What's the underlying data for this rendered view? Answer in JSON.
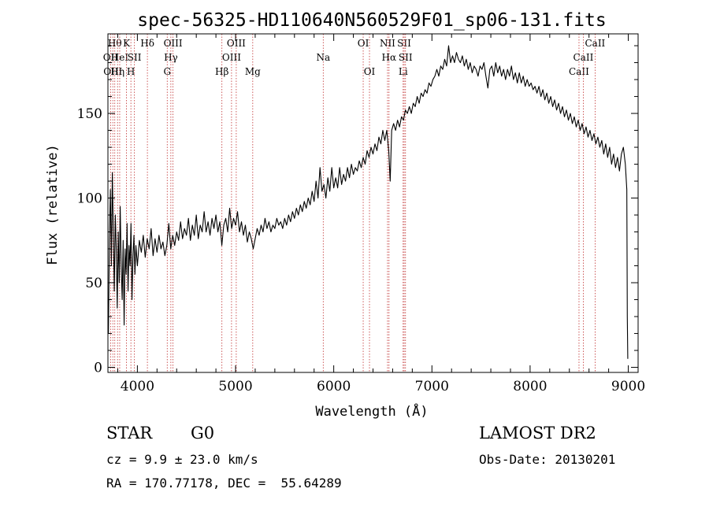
{
  "chart_data": {
    "type": "line",
    "title": "spec-56325-HD110640N560529F01_sp06-131.fits",
    "xlabel": "Wavelength (Å)",
    "ylabel": "Flux (relative)",
    "xlim": [
      3700,
      9100
    ],
    "ylim": [
      -3,
      197
    ],
    "x_ticks": [
      4000,
      5000,
      6000,
      7000,
      8000,
      9000
    ],
    "y_ticks": [
      0,
      50,
      100,
      150
    ],
    "grid": false,
    "series": [
      {
        "color": "#000000",
        "points": [
          [
            3705,
            20
          ],
          [
            3715,
            75
          ],
          [
            3725,
            105
          ],
          [
            3735,
            60
          ],
          [
            3745,
            115
          ],
          [
            3755,
            80
          ],
          [
            3765,
            45
          ],
          [
            3775,
            90
          ],
          [
            3785,
            70
          ],
          [
            3795,
            35
          ],
          [
            3805,
            80
          ],
          [
            3815,
            50
          ],
          [
            3825,
            95
          ],
          [
            3835,
            60
          ],
          [
            3845,
            40
          ],
          [
            3855,
            75
          ],
          [
            3865,
            25
          ],
          [
            3875,
            70
          ],
          [
            3885,
            55
          ],
          [
            3895,
            85
          ],
          [
            3905,
            45
          ],
          [
            3915,
            72
          ],
          [
            3925,
            60
          ],
          [
            3935,
            85
          ],
          [
            3945,
            40
          ],
          [
            3955,
            65
          ],
          [
            3965,
            78
          ],
          [
            3975,
            55
          ],
          [
            3985,
            72
          ],
          [
            4000,
            60
          ],
          [
            4020,
            75
          ],
          [
            4040,
            68
          ],
          [
            4060,
            78
          ],
          [
            4080,
            65
          ],
          [
            4100,
            76
          ],
          [
            4120,
            70
          ],
          [
            4140,
            82
          ],
          [
            4160,
            66
          ],
          [
            4180,
            76
          ],
          [
            4200,
            68
          ],
          [
            4220,
            78
          ],
          [
            4240,
            70
          ],
          [
            4260,
            74
          ],
          [
            4280,
            66
          ],
          [
            4300,
            72
          ],
          [
            4320,
            85
          ],
          [
            4340,
            70
          ],
          [
            4360,
            78
          ],
          [
            4380,
            72
          ],
          [
            4400,
            80
          ],
          [
            4420,
            75
          ],
          [
            4440,
            86
          ],
          [
            4460,
            76
          ],
          [
            4480,
            82
          ],
          [
            4500,
            78
          ],
          [
            4520,
            88
          ],
          [
            4540,
            75
          ],
          [
            4560,
            84
          ],
          [
            4580,
            78
          ],
          [
            4600,
            90
          ],
          [
            4620,
            76
          ],
          [
            4640,
            84
          ],
          [
            4660,
            80
          ],
          [
            4680,
            92
          ],
          [
            4700,
            80
          ],
          [
            4720,
            86
          ],
          [
            4740,
            78
          ],
          [
            4760,
            88
          ],
          [
            4780,
            82
          ],
          [
            4800,
            90
          ],
          [
            4820,
            80
          ],
          [
            4840,
            86
          ],
          [
            4860,
            72
          ],
          [
            4880,
            84
          ],
          [
            4900,
            88
          ],
          [
            4920,
            80
          ],
          [
            4940,
            94
          ],
          [
            4960,
            82
          ],
          [
            4980,
            88
          ],
          [
            5000,
            84
          ],
          [
            5020,
            92
          ],
          [
            5040,
            80
          ],
          [
            5060,
            86
          ],
          [
            5080,
            78
          ],
          [
            5100,
            84
          ],
          [
            5120,
            74
          ],
          [
            5140,
            80
          ],
          [
            5160,
            76
          ],
          [
            5180,
            70
          ],
          [
            5200,
            76
          ],
          [
            5220,
            82
          ],
          [
            5240,
            78
          ],
          [
            5260,
            84
          ],
          [
            5280,
            80
          ],
          [
            5300,
            88
          ],
          [
            5320,
            82
          ],
          [
            5340,
            86
          ],
          [
            5360,
            80
          ],
          [
            5380,
            84
          ],
          [
            5400,
            82
          ],
          [
            5420,
            88
          ],
          [
            5440,
            84
          ],
          [
            5460,
            86
          ],
          [
            5480,
            82
          ],
          [
            5500,
            88
          ],
          [
            5520,
            84
          ],
          [
            5540,
            90
          ],
          [
            5560,
            86
          ],
          [
            5580,
            92
          ],
          [
            5600,
            88
          ],
          [
            5620,
            94
          ],
          [
            5640,
            90
          ],
          [
            5660,
            96
          ],
          [
            5680,
            92
          ],
          [
            5700,
            98
          ],
          [
            5720,
            94
          ],
          [
            5740,
            100
          ],
          [
            5760,
            96
          ],
          [
            5780,
            104
          ],
          [
            5800,
            98
          ],
          [
            5820,
            110
          ],
          [
            5840,
            100
          ],
          [
            5860,
            118
          ],
          [
            5880,
            104
          ],
          [
            5900,
            108
          ],
          [
            5920,
            100
          ],
          [
            5940,
            112
          ],
          [
            5960,
            104
          ],
          [
            5980,
            118
          ],
          [
            6000,
            106
          ],
          [
            6020,
            112
          ],
          [
            6040,
            106
          ],
          [
            6060,
            118
          ],
          [
            6080,
            108
          ],
          [
            6100,
            114
          ],
          [
            6120,
            110
          ],
          [
            6140,
            118
          ],
          [
            6160,
            112
          ],
          [
            6180,
            120
          ],
          [
            6200,
            114
          ],
          [
            6220,
            118
          ],
          [
            6240,
            116
          ],
          [
            6260,
            122
          ],
          [
            6280,
            118
          ],
          [
            6300,
            124
          ],
          [
            6320,
            120
          ],
          [
            6340,
            128
          ],
          [
            6360,
            124
          ],
          [
            6380,
            130
          ],
          [
            6400,
            126
          ],
          [
            6420,
            132
          ],
          [
            6440,
            128
          ],
          [
            6460,
            136
          ],
          [
            6480,
            132
          ],
          [
            6500,
            140
          ],
          [
            6520,
            134
          ],
          [
            6540,
            140
          ],
          [
            6560,
            128
          ],
          [
            6575,
            110
          ],
          [
            6590,
            140
          ],
          [
            6610,
            144
          ],
          [
            6630,
            140
          ],
          [
            6650,
            146
          ],
          [
            6670,
            142
          ],
          [
            6690,
            148
          ],
          [
            6710,
            146
          ],
          [
            6730,
            152
          ],
          [
            6750,
            150
          ],
          [
            6770,
            154
          ],
          [
            6790,
            150
          ],
          [
            6810,
            156
          ],
          [
            6830,
            154
          ],
          [
            6850,
            160
          ],
          [
            6870,
            156
          ],
          [
            6890,
            162
          ],
          [
            6910,
            160
          ],
          [
            6930,
            164
          ],
          [
            6950,
            162
          ],
          [
            6970,
            168
          ],
          [
            6990,
            166
          ],
          [
            7010,
            170
          ],
          [
            7030,
            172
          ],
          [
            7050,
            176
          ],
          [
            7070,
            172
          ],
          [
            7090,
            178
          ],
          [
            7110,
            176
          ],
          [
            7130,
            182
          ],
          [
            7150,
            178
          ],
          [
            7170,
            190
          ],
          [
            7190,
            180
          ],
          [
            7210,
            184
          ],
          [
            7230,
            180
          ],
          [
            7250,
            186
          ],
          [
            7270,
            182
          ],
          [
            7290,
            180
          ],
          [
            7310,
            184
          ],
          [
            7330,
            178
          ],
          [
            7350,
            182
          ],
          [
            7370,
            176
          ],
          [
            7390,
            180
          ],
          [
            7410,
            174
          ],
          [
            7430,
            178
          ],
          [
            7450,
            176
          ],
          [
            7470,
            172
          ],
          [
            7490,
            178
          ],
          [
            7510,
            176
          ],
          [
            7530,
            180
          ],
          [
            7550,
            172
          ],
          [
            7570,
            165
          ],
          [
            7590,
            176
          ],
          [
            7610,
            178
          ],
          [
            7630,
            172
          ],
          [
            7650,
            180
          ],
          [
            7670,
            174
          ],
          [
            7690,
            178
          ],
          [
            7710,
            172
          ],
          [
            7730,
            176
          ],
          [
            7750,
            170
          ],
          [
            7770,
            176
          ],
          [
            7790,
            172
          ],
          [
            7810,
            178
          ],
          [
            7830,
            170
          ],
          [
            7850,
            174
          ],
          [
            7870,
            168
          ],
          [
            7890,
            174
          ],
          [
            7910,
            168
          ],
          [
            7930,
            172
          ],
          [
            7950,
            166
          ],
          [
            7970,
            170
          ],
          [
            7990,
            166
          ],
          [
            8010,
            168
          ],
          [
            8030,
            164
          ],
          [
            8050,
            166
          ],
          [
            8070,
            162
          ],
          [
            8090,
            166
          ],
          [
            8110,
            160
          ],
          [
            8130,
            164
          ],
          [
            8150,
            158
          ],
          [
            8170,
            162
          ],
          [
            8190,
            156
          ],
          [
            8210,
            160
          ],
          [
            8230,
            154
          ],
          [
            8250,
            158
          ],
          [
            8270,
            152
          ],
          [
            8290,
            156
          ],
          [
            8310,
            150
          ],
          [
            8330,
            154
          ],
          [
            8350,
            148
          ],
          [
            8370,
            152
          ],
          [
            8390,
            146
          ],
          [
            8410,
            150
          ],
          [
            8430,
            144
          ],
          [
            8450,
            148
          ],
          [
            8470,
            142
          ],
          [
            8490,
            146
          ],
          [
            8510,
            140
          ],
          [
            8530,
            144
          ],
          [
            8550,
            138
          ],
          [
            8570,
            142
          ],
          [
            8590,
            136
          ],
          [
            8610,
            140
          ],
          [
            8630,
            134
          ],
          [
            8650,
            138
          ],
          [
            8670,
            132
          ],
          [
            8690,
            136
          ],
          [
            8710,
            130
          ],
          [
            8730,
            134
          ],
          [
            8750,
            126
          ],
          [
            8770,
            132
          ],
          [
            8790,
            124
          ],
          [
            8810,
            130
          ],
          [
            8830,
            120
          ],
          [
            8850,
            126
          ],
          [
            8870,
            118
          ],
          [
            8890,
            124
          ],
          [
            8910,
            116
          ],
          [
            8930,
            126
          ],
          [
            8950,
            130
          ],
          [
            8970,
            120
          ],
          [
            8985,
            105
          ],
          [
            8990,
            30
          ],
          [
            8995,
            5
          ]
        ]
      }
    ],
    "line_markers": [
      {
        "x": 3727,
        "label": "OII",
        "row": 2
      },
      {
        "x": 3750,
        "label": "OIII",
        "row": 3
      },
      {
        "x": 3770,
        "label": "Hθ",
        "row": 1
      },
      {
        "x": 3798,
        "label": "Hη",
        "row": 3
      },
      {
        "x": 3820,
        "label": "HeI",
        "row": 2
      },
      {
        "x": 3889,
        "label": "K",
        "row": 1
      },
      {
        "x": 3934,
        "label": "H",
        "row": 3
      },
      {
        "x": 3970,
        "label": "SII",
        "row": 2
      },
      {
        "x": 4102,
        "label": "Hδ",
        "row": 1
      },
      {
        "x": 4304,
        "label": "G",
        "row": 3
      },
      {
        "x": 4341,
        "label": "Hγ",
        "row": 2
      },
      {
        "x": 4363,
        "label": "OIII",
        "row": 1
      },
      {
        "x": 4861,
        "label": "Hβ",
        "row": 3
      },
      {
        "x": 4959,
        "label": "OIII",
        "row": 2
      },
      {
        "x": 5007,
        "label": "OIII",
        "row": 1
      },
      {
        "x": 5175,
        "label": "Mg",
        "row": 3
      },
      {
        "x": 5893,
        "label": "Na",
        "row": 2
      },
      {
        "x": 6300,
        "label": "OI",
        "row": 1
      },
      {
        "x": 6364,
        "label": "OI",
        "row": 3
      },
      {
        "x": 6548,
        "label": "NII",
        "row": 1
      },
      {
        "x": 6563,
        "label": "Hα",
        "row": 2
      },
      {
        "x": 6707,
        "label": "Li",
        "row": 3
      },
      {
        "x": 6717,
        "label": "SII",
        "row": 1
      },
      {
        "x": 6731,
        "label": "SII",
        "row": 2
      },
      {
        "x": 8498,
        "label": "CaII",
        "row": 3
      },
      {
        "x": 8542,
        "label": "CaII",
        "row": 2
      },
      {
        "x": 8662,
        "label": "CaII",
        "row": 1
      }
    ]
  },
  "info": {
    "class": "STAR",
    "subclass": "G0",
    "survey": "LAMOST DR2",
    "cz": "cz = 9.9 ± 23.0 km/s",
    "obs_date": "Obs-Date: 20130201",
    "radec": "RA = 170.77178, DEC =  55.64289"
  }
}
